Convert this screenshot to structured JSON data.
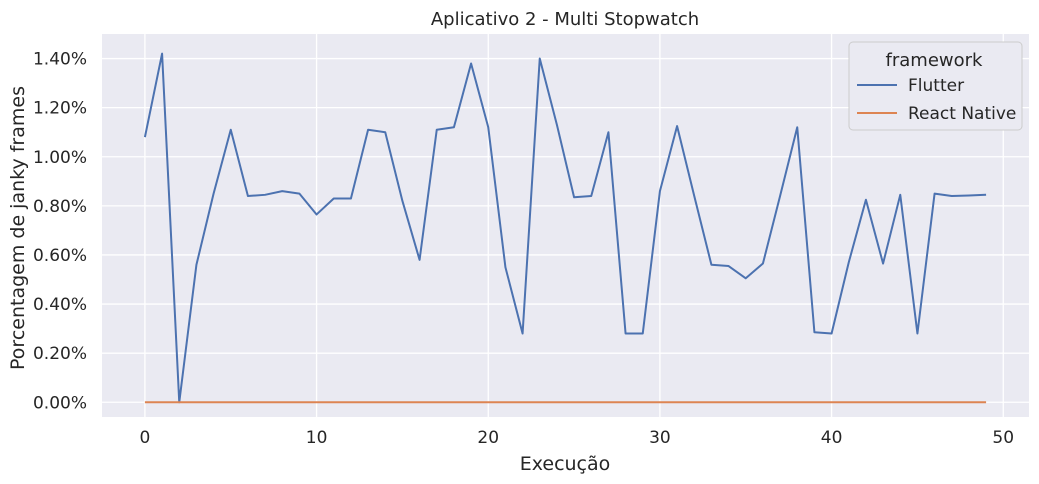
{
  "chart_data": {
    "type": "line",
    "title": "Aplicativo 2 - Multi Stopwatch",
    "xlabel": "Execução",
    "ylabel": "Porcentagem de janky frames",
    "xlim": [
      -2.5,
      51.5
    ],
    "ylim": [
      -0.06,
      1.5
    ],
    "x_ticks": [
      0,
      10,
      20,
      30,
      40,
      50
    ],
    "x_tick_labels": [
      "0",
      "10",
      "20",
      "30",
      "40",
      "50"
    ],
    "y_ticks": [
      0,
      0.2,
      0.4,
      0.6,
      0.8,
      1.0,
      1.2,
      1.4
    ],
    "y_tick_labels": [
      "0.00%",
      "0.20%",
      "0.40%",
      "0.60%",
      "0.80%",
      "1.00%",
      "1.20%",
      "1.40%"
    ],
    "grid": true,
    "legend": {
      "title": "framework",
      "placement": "top-right"
    },
    "x": [
      0,
      1,
      2,
      3,
      4,
      5,
      6,
      7,
      8,
      9,
      10,
      11,
      12,
      13,
      14,
      15,
      16,
      17,
      18,
      19,
      20,
      21,
      22,
      23,
      24,
      25,
      26,
      27,
      28,
      29,
      30,
      31,
      32,
      33,
      34,
      35,
      36,
      37,
      38,
      39,
      40,
      41,
      42,
      43,
      44,
      45,
      46,
      47,
      48,
      49
    ],
    "series": [
      {
        "name": "Flutter",
        "color": "#4c72b0",
        "values": [
          1.08,
          1.42,
          0.0,
          0.56,
          0.85,
          1.11,
          0.84,
          0.845,
          0.86,
          0.85,
          0.765,
          0.83,
          0.83,
          1.11,
          1.1,
          0.82,
          0.58,
          1.11,
          1.12,
          1.38,
          1.12,
          0.55,
          0.28,
          1.4,
          1.13,
          0.835,
          0.84,
          1.1,
          0.28,
          0.28,
          0.86,
          1.125,
          0.84,
          0.56,
          0.555,
          0.505,
          0.565,
          0.84,
          1.12,
          0.285,
          0.28,
          0.57,
          0.825,
          0.565,
          0.845,
          0.28,
          0.85,
          0.84,
          0.842,
          0.845
        ]
      },
      {
        "name": "React Native",
        "color": "#dd8452",
        "values": [
          0,
          0,
          0,
          0,
          0,
          0,
          0,
          0,
          0,
          0,
          0,
          0,
          0,
          0,
          0,
          0,
          0,
          0,
          0,
          0,
          0,
          0,
          0,
          0,
          0,
          0,
          0,
          0,
          0,
          0,
          0,
          0,
          0,
          0,
          0,
          0,
          0,
          0,
          0,
          0,
          0,
          0,
          0,
          0,
          0,
          0,
          0,
          0,
          0,
          0
        ]
      }
    ]
  }
}
